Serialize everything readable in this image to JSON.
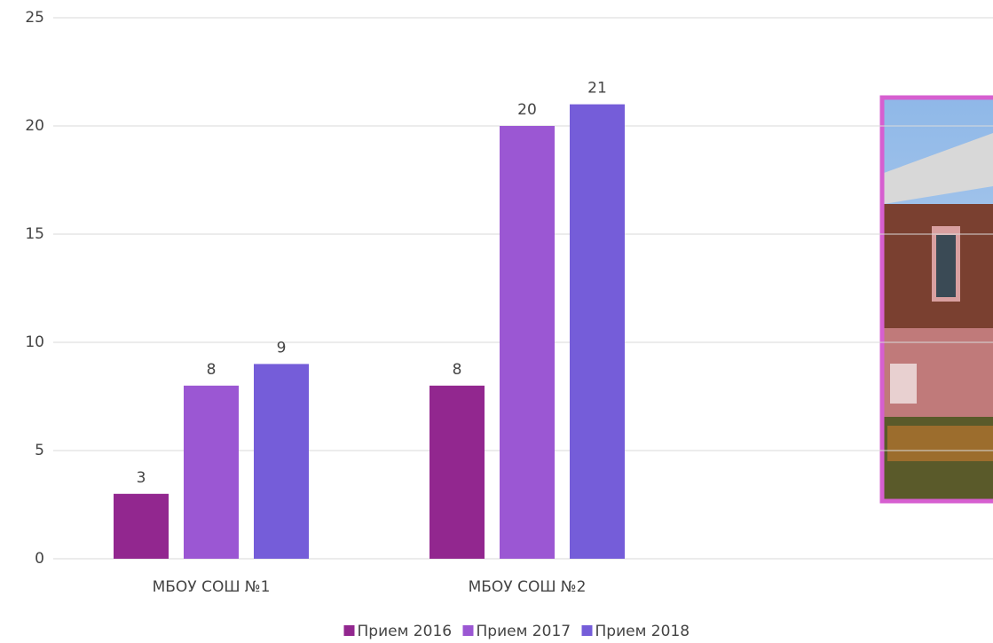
{
  "chart_data": {
    "type": "bar",
    "categories": [
      "МБОУ СОШ №1",
      "МБОУ СОШ №2",
      null
    ],
    "series": [
      {
        "name": "Прием 2016",
        "color": "#92278f",
        "values": [
          3,
          8,
          null
        ]
      },
      {
        "name": "Прием 2017",
        "color": "#9b57d3",
        "values": [
          8,
          20,
          null
        ]
      },
      {
        "name": "Прием 2018",
        "color": "#755dd9",
        "values": [
          9,
          21,
          null
        ]
      }
    ],
    "ylim": [
      0,
      25
    ],
    "yticks": [
      0,
      5,
      10,
      15,
      20,
      25
    ],
    "grid": true,
    "legend": "bottom"
  }
}
